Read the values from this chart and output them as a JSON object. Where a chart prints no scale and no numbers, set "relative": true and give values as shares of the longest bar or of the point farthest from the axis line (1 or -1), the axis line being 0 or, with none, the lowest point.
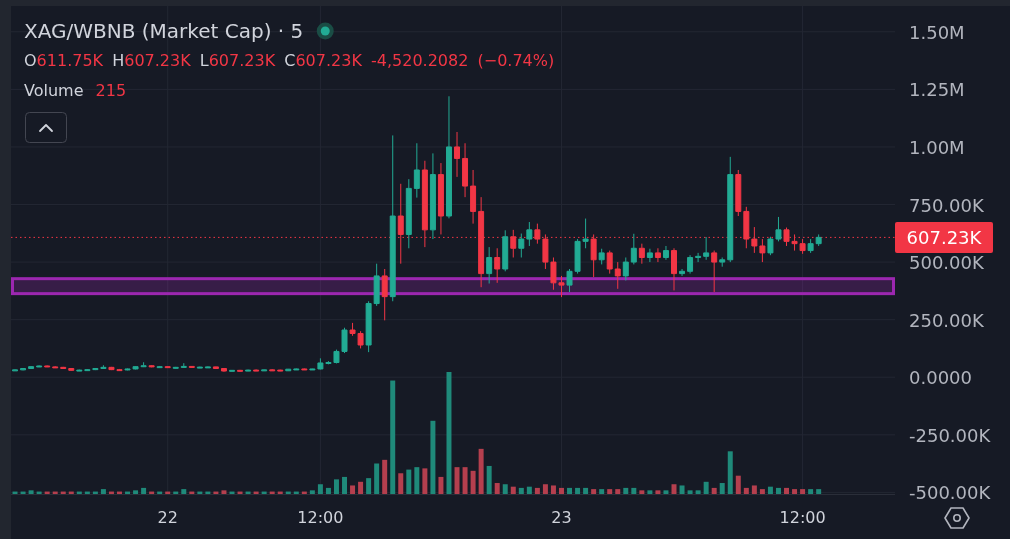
{
  "chart_data": [
    {
      "type": "candlestick",
      "title": "XAG/WBNB (Market Cap) · 5",
      "subtitle": "O611.75K H607.23K L607.23K C607.23K -4,520.2082 (−0.74%)",
      "categories": [
        null,
        null,
        null,
        null,
        null,
        null,
        null,
        null,
        null,
        null,
        null,
        null,
        null,
        null,
        null,
        null,
        null,
        null,
        null,
        "22",
        null,
        null,
        null,
        null,
        null,
        null,
        null,
        null,
        null,
        null,
        null,
        null,
        null,
        null,
        null,
        null,
        null,
        null,
        "12:00",
        null,
        null,
        null,
        null,
        null,
        null,
        null,
        null,
        null,
        null,
        null,
        null,
        null,
        null,
        null,
        null,
        null,
        null,
        null,
        null,
        null,
        null,
        null,
        null,
        null,
        null,
        null,
        null,
        null,
        "23",
        null,
        null,
        null,
        null,
        null,
        null,
        null,
        null,
        null,
        null,
        null,
        null,
        null,
        null,
        null,
        null,
        null,
        null,
        null,
        null,
        null,
        null,
        null,
        null,
        null,
        null,
        null,
        null,
        null,
        "12:00",
        null,
        null,
        null,
        null,
        null,
        null,
        null,
        null,
        null,
        null,
        null
      ],
      "ohlc": [
        [
          30000,
          34000,
          28000,
          32000
        ],
        [
          32000,
          40000,
          30000,
          38000
        ],
        [
          38000,
          48000,
          36000,
          46000
        ],
        [
          46000,
          51000,
          44000,
          49000
        ],
        [
          49000,
          51000,
          44000,
          45000
        ],
        [
          45000,
          48000,
          41000,
          43000
        ],
        [
          43000,
          45000,
          36000,
          38000
        ],
        [
          38000,
          40000,
          28000,
          30000
        ],
        [
          30000,
          33000,
          27000,
          31000
        ],
        [
          31000,
          35000,
          29000,
          33000
        ],
        [
          33000,
          40000,
          31000,
          38000
        ],
        [
          38000,
          52000,
          36000,
          43000
        ],
        [
          43000,
          45000,
          31000,
          33000
        ],
        [
          33000,
          36000,
          30000,
          32000
        ],
        [
          32000,
          38000,
          30000,
          36000
        ],
        [
          36000,
          48000,
          34000,
          46000
        ],
        [
          46000,
          65000,
          44000,
          50000
        ],
        [
          50000,
          52000,
          43000,
          45000
        ],
        [
          45000,
          49000,
          42000,
          46000
        ],
        [
          46000,
          48000,
          40000,
          42000
        ],
        [
          42000,
          45000,
          40000,
          43000
        ],
        [
          43000,
          61000,
          41000,
          47000
        ],
        [
          47000,
          48000,
          41000,
          43000
        ],
        [
          43000,
          46000,
          41000,
          44000
        ],
        [
          44000,
          47000,
          42000,
          45000
        ],
        [
          45000,
          46000,
          36000,
          38000
        ],
        [
          38000,
          39000,
          24000,
          27000
        ],
        [
          27000,
          31000,
          25000,
          30000
        ],
        [
          30000,
          32000,
          27000,
          29000
        ],
        [
          29000,
          33000,
          27000,
          31000
        ],
        [
          31000,
          34000,
          28000,
          30000
        ],
        [
          30000,
          33000,
          28000,
          32000
        ],
        [
          32000,
          35000,
          29000,
          31000
        ],
        [
          31000,
          33000,
          26000,
          28000
        ],
        [
          28000,
          36000,
          27000,
          35000
        ],
        [
          35000,
          38000,
          33000,
          36000
        ],
        [
          36000,
          38000,
          33000,
          35000
        ],
        [
          35000,
          37000,
          32000,
          36000
        ],
        [
          36000,
          82000,
          34000,
          62000
        ],
        [
          62000,
          70000,
          56000,
          64000
        ],
        [
          64000,
          120000,
          60000,
          112000
        ],
        [
          112000,
          215000,
          105000,
          205000
        ],
        [
          205000,
          236000,
          180000,
          190000
        ],
        [
          190000,
          200000,
          125000,
          140000
        ],
        [
          140000,
          330000,
          109000,
          320000
        ],
        [
          320000,
          493000,
          310000,
          440000
        ],
        [
          440000,
          470000,
          247000,
          350000
        ],
        [
          350000,
          1050000,
          330000,
          700000
        ],
        [
          700000,
          840000,
          493000,
          620000
        ],
        [
          620000,
          860000,
          560000,
          820000
        ],
        [
          820000,
          1016000,
          780000,
          900000
        ],
        [
          900000,
          940000,
          565000,
          640000
        ],
        [
          640000,
          972000,
          600000,
          880000
        ],
        [
          880000,
          930000,
          620000,
          700000
        ],
        [
          700000,
          1220000,
          690000,
          1000000
        ],
        [
          1000000,
          1065000,
          870000,
          950000
        ],
        [
          950000,
          1016000,
          782000,
          830000
        ],
        [
          830000,
          900000,
          667000,
          720000
        ],
        [
          720000,
          782000,
          391000,
          450000
        ],
        [
          450000,
          565000,
          407000,
          520000
        ],
        [
          520000,
          560000,
          410000,
          470000
        ],
        [
          470000,
          638000,
          460000,
          610000
        ],
        [
          610000,
          640000,
          520000,
          560000
        ],
        [
          560000,
          624000,
          520000,
          600000
        ],
        [
          600000,
          674000,
          570000,
          640000
        ],
        [
          640000,
          667000,
          580000,
          600000
        ],
        [
          600000,
          620000,
          470000,
          500000
        ],
        [
          500000,
          520000,
          380000,
          410000
        ],
        [
          410000,
          440000,
          348000,
          400000
        ],
        [
          400000,
          470000,
          370000,
          460000
        ],
        [
          460000,
          600000,
          450000,
          590000
        ],
        [
          590000,
          689000,
          560000,
          600000
        ],
        [
          600000,
          620000,
          435000,
          510000
        ],
        [
          510000,
          558000,
          490000,
          540000
        ],
        [
          540000,
          550000,
          450000,
          470000
        ],
        [
          470000,
          500000,
          384000,
          440000
        ],
        [
          440000,
          520000,
          420000,
          500000
        ],
        [
          500000,
          623000,
          490000,
          560000
        ],
        [
          560000,
          580000,
          493000,
          520000
        ],
        [
          520000,
          558000,
          500000,
          540000
        ],
        [
          540000,
          560000,
          500000,
          520000
        ],
        [
          520000,
          570000,
          510000,
          550000
        ],
        [
          550000,
          560000,
          377000,
          450000
        ],
        [
          450000,
          470000,
          440000,
          460000
        ],
        [
          460000,
          530000,
          450000,
          520000
        ],
        [
          520000,
          540000,
          500000,
          525000
        ],
        [
          525000,
          609000,
          510000,
          540000
        ],
        [
          540000,
          550000,
          370000,
          500000
        ],
        [
          500000,
          520000,
          480000,
          510000
        ],
        [
          510000,
          957000,
          500000,
          880000
        ],
        [
          880000,
          900000,
          700000,
          720000
        ],
        [
          720000,
          740000,
          560000,
          600000
        ],
        [
          600000,
          652000,
          540000,
          570000
        ],
        [
          570000,
          600000,
          500000,
          540000
        ],
        [
          540000,
          610000,
          530000,
          600000
        ],
        [
          600000,
          696000,
          590000,
          640000
        ],
        [
          640000,
          650000,
          570000,
          590000
        ],
        [
          590000,
          620000,
          550000,
          580000
        ],
        [
          580000,
          600000,
          536000,
          550000
        ],
        [
          550000,
          600000,
          540000,
          580000
        ],
        [
          580000,
          620000,
          570000,
          607230
        ],
        null,
        null,
        null,
        null,
        null,
        null,
        null,
        null,
        null
      ],
      "colors": [
        "#22ab94",
        "#22ab94",
        "#22ab94",
        "#22ab94",
        "#f23645",
        "#f23645",
        "#f23645",
        "#f23645",
        "#22ab94",
        "#22ab94",
        "#22ab94",
        "#22ab94",
        "#f23645",
        "#f23645",
        "#22ab94",
        "#22ab94",
        "#22ab94",
        "#f23645",
        "#22ab94",
        "#f23645",
        "#22ab94",
        "#22ab94",
        "#f23645",
        "#22ab94",
        "#22ab94",
        "#f23645",
        "#f23645",
        "#22ab94",
        "#f23645",
        "#22ab94",
        "#f23645",
        "#22ab94",
        "#f23645",
        "#f23645",
        "#22ab94",
        "#22ab94",
        "#f23645",
        "#22ab94",
        "#22ab94",
        "#22ab94",
        "#22ab94",
        "#22ab94",
        "#f23645",
        "#f23645",
        "#22ab94",
        "#22ab94",
        "#f23645",
        "#22ab94",
        "#f23645",
        "#22ab94",
        "#22ab94",
        "#f23645",
        "#22ab94",
        "#f23645",
        "#22ab94",
        "#f23645",
        "#f23645",
        "#f23645",
        "#f23645",
        "#22ab94",
        "#f23645",
        "#22ab94",
        "#f23645",
        "#22ab94",
        "#22ab94",
        "#f23645",
        "#f23645",
        "#f23645",
        "#f23645",
        "#22ab94",
        "#22ab94",
        "#22ab94",
        "#f23645",
        "#22ab94",
        "#f23645",
        "#f23645",
        "#22ab94",
        "#22ab94",
        "#f23645",
        "#22ab94",
        "#f23645",
        "#22ab94",
        "#f23645",
        "#22ab94",
        "#22ab94",
        "#22ab94",
        "#22ab94",
        "#f23645",
        "#22ab94",
        "#22ab94",
        "#f23645",
        "#f23645",
        "#f23645",
        "#f23645",
        "#22ab94",
        "#22ab94",
        "#f23645",
        "#f23645",
        "#f23645",
        "#22ab94",
        "#22ab94",
        null,
        null,
        null,
        null,
        null,
        null,
        null,
        null,
        null
      ],
      "ylim": [
        -507000,
        1612000
      ],
      "yticks": [
        {
          "value": -500000,
          "label": "-500.00K"
        },
        {
          "value": -250000,
          "label": "-250.00K"
        },
        {
          "value": 0,
          "label": "0.0000"
        },
        {
          "value": 250000,
          "label": "250.00K"
        },
        {
          "value": 500000,
          "label": "500.00K"
        },
        {
          "value": 750000,
          "label": "750.00K"
        },
        {
          "value": 1000000,
          "label": "1.00M"
        },
        {
          "value": 1250000,
          "label": "1.25M"
        },
        {
          "value": 1500000,
          "label": "1.50M"
        }
      ],
      "grid": true,
      "ref_lines": [
        {
          "axis": "y",
          "value": 607230,
          "label": "607.23K",
          "color": "#f23645",
          "line_style": "dotted"
        }
      ],
      "bands": [
        {
          "axis": "y",
          "from": 363000,
          "to": 428000,
          "color": "#9c27b0"
        }
      ]
    },
    {
      "type": "bar",
      "title": "Volume",
      "annotations": [
        "215"
      ],
      "relative": true,
      "categories": [
        null,
        null,
        null,
        null,
        null,
        null,
        null,
        null,
        null,
        null,
        null,
        null,
        null,
        null,
        null,
        null,
        null,
        null,
        null,
        null,
        null,
        null,
        null,
        null,
        null,
        null,
        null,
        null,
        null,
        null,
        null,
        null,
        null,
        null,
        null,
        null,
        null,
        null,
        null,
        null,
        null,
        null,
        null,
        null,
        null,
        null,
        null,
        null,
        null,
        null,
        null,
        null,
        null,
        null,
        null,
        null,
        null,
        null,
        null,
        null,
        null,
        null,
        null,
        null,
        null,
        null,
        null,
        null,
        null,
        null,
        null,
        null,
        null,
        null,
        null,
        null,
        null,
        null,
        null,
        null,
        null,
        null,
        null,
        null,
        null,
        null,
        null,
        null,
        null,
        null,
        null,
        null,
        null,
        null,
        null,
        null,
        null,
        null,
        null,
        null,
        null,
        null,
        null,
        null,
        null,
        null,
        null,
        null,
        null,
        null
      ],
      "values": [
        0.02,
        0.02,
        0.03,
        0.02,
        0.02,
        0.02,
        0.02,
        0.02,
        0.02,
        0.02,
        0.02,
        0.04,
        0.02,
        0.02,
        0.02,
        0.03,
        0.05,
        0.02,
        0.02,
        0.02,
        0.02,
        0.04,
        0.02,
        0.02,
        0.02,
        0.02,
        0.03,
        0.02,
        0.02,
        0.02,
        0.02,
        0.02,
        0.02,
        0.02,
        0.02,
        0.02,
        0.02,
        0.03,
        0.08,
        0.05,
        0.12,
        0.14,
        0.07,
        0.1,
        0.13,
        0.25,
        0.28,
        0.93,
        0.17,
        0.2,
        0.22,
        0.21,
        0.6,
        0.14,
        1,
        0.22,
        0.22,
        0.19,
        0.37,
        0.23,
        0.09,
        0.08,
        0.06,
        0.05,
        0.06,
        0.05,
        0.08,
        0.07,
        0.05,
        0.05,
        0.05,
        0.05,
        0.04,
        0.04,
        0.04,
        0.04,
        0.05,
        0.05,
        0.03,
        0.03,
        0.03,
        0.03,
        0.08,
        0.07,
        0.03,
        0.03,
        0.1,
        0.05,
        0.09,
        0.35,
        0.15,
        0.05,
        0.07,
        0.04,
        0.06,
        0.05,
        0.05,
        0.04,
        0.04,
        0.04,
        0.04,
        null,
        null,
        null,
        null,
        null,
        null,
        null,
        null,
        null
      ],
      "colors": [
        "#1f8a7a",
        "#1f8a7a",
        "#1f8a7a",
        "#1f8a7a",
        "#b53f4e",
        "#b53f4e",
        "#b53f4e",
        "#b53f4e",
        "#1f8a7a",
        "#1f8a7a",
        "#1f8a7a",
        "#1f8a7a",
        "#b53f4e",
        "#b53f4e",
        "#1f8a7a",
        "#1f8a7a",
        "#1f8a7a",
        "#b53f4e",
        "#1f8a7a",
        "#b53f4e",
        "#1f8a7a",
        "#1f8a7a",
        "#b53f4e",
        "#1f8a7a",
        "#1f8a7a",
        "#b53f4e",
        "#b53f4e",
        "#1f8a7a",
        "#b53f4e",
        "#1f8a7a",
        "#b53f4e",
        "#1f8a7a",
        "#b53f4e",
        "#b53f4e",
        "#1f8a7a",
        "#1f8a7a",
        "#b53f4e",
        "#1f8a7a",
        "#1f8a7a",
        "#1f8a7a",
        "#1f8a7a",
        "#1f8a7a",
        "#b53f4e",
        "#b53f4e",
        "#1f8a7a",
        "#1f8a7a",
        "#b53f4e",
        "#1f8a7a",
        "#b53f4e",
        "#1f8a7a",
        "#1f8a7a",
        "#b53f4e",
        "#1f8a7a",
        "#b53f4e",
        "#1f8a7a",
        "#b53f4e",
        "#b53f4e",
        "#b53f4e",
        "#b53f4e",
        "#1f8a7a",
        "#b53f4e",
        "#1f8a7a",
        "#b53f4e",
        "#1f8a7a",
        "#1f8a7a",
        "#b53f4e",
        "#b53f4e",
        "#b53f4e",
        "#b53f4e",
        "#1f8a7a",
        "#1f8a7a",
        "#1f8a7a",
        "#b53f4e",
        "#1f8a7a",
        "#b53f4e",
        "#b53f4e",
        "#1f8a7a",
        "#1f8a7a",
        "#b53f4e",
        "#1f8a7a",
        "#b53f4e",
        "#1f8a7a",
        "#b53f4e",
        "#1f8a7a",
        "#1f8a7a",
        "#1f8a7a",
        "#1f8a7a",
        "#b53f4e",
        "#1f8a7a",
        "#1f8a7a",
        "#b53f4e",
        "#b53f4e",
        "#b53f4e",
        "#b53f4e",
        "#1f8a7a",
        "#1f8a7a",
        "#b53f4e",
        "#b53f4e",
        "#b53f4e",
        "#1f8a7a",
        "#1f8a7a",
        null,
        null,
        null,
        null,
        null,
        null,
        null,
        null,
        null
      ]
    }
  ]
}
